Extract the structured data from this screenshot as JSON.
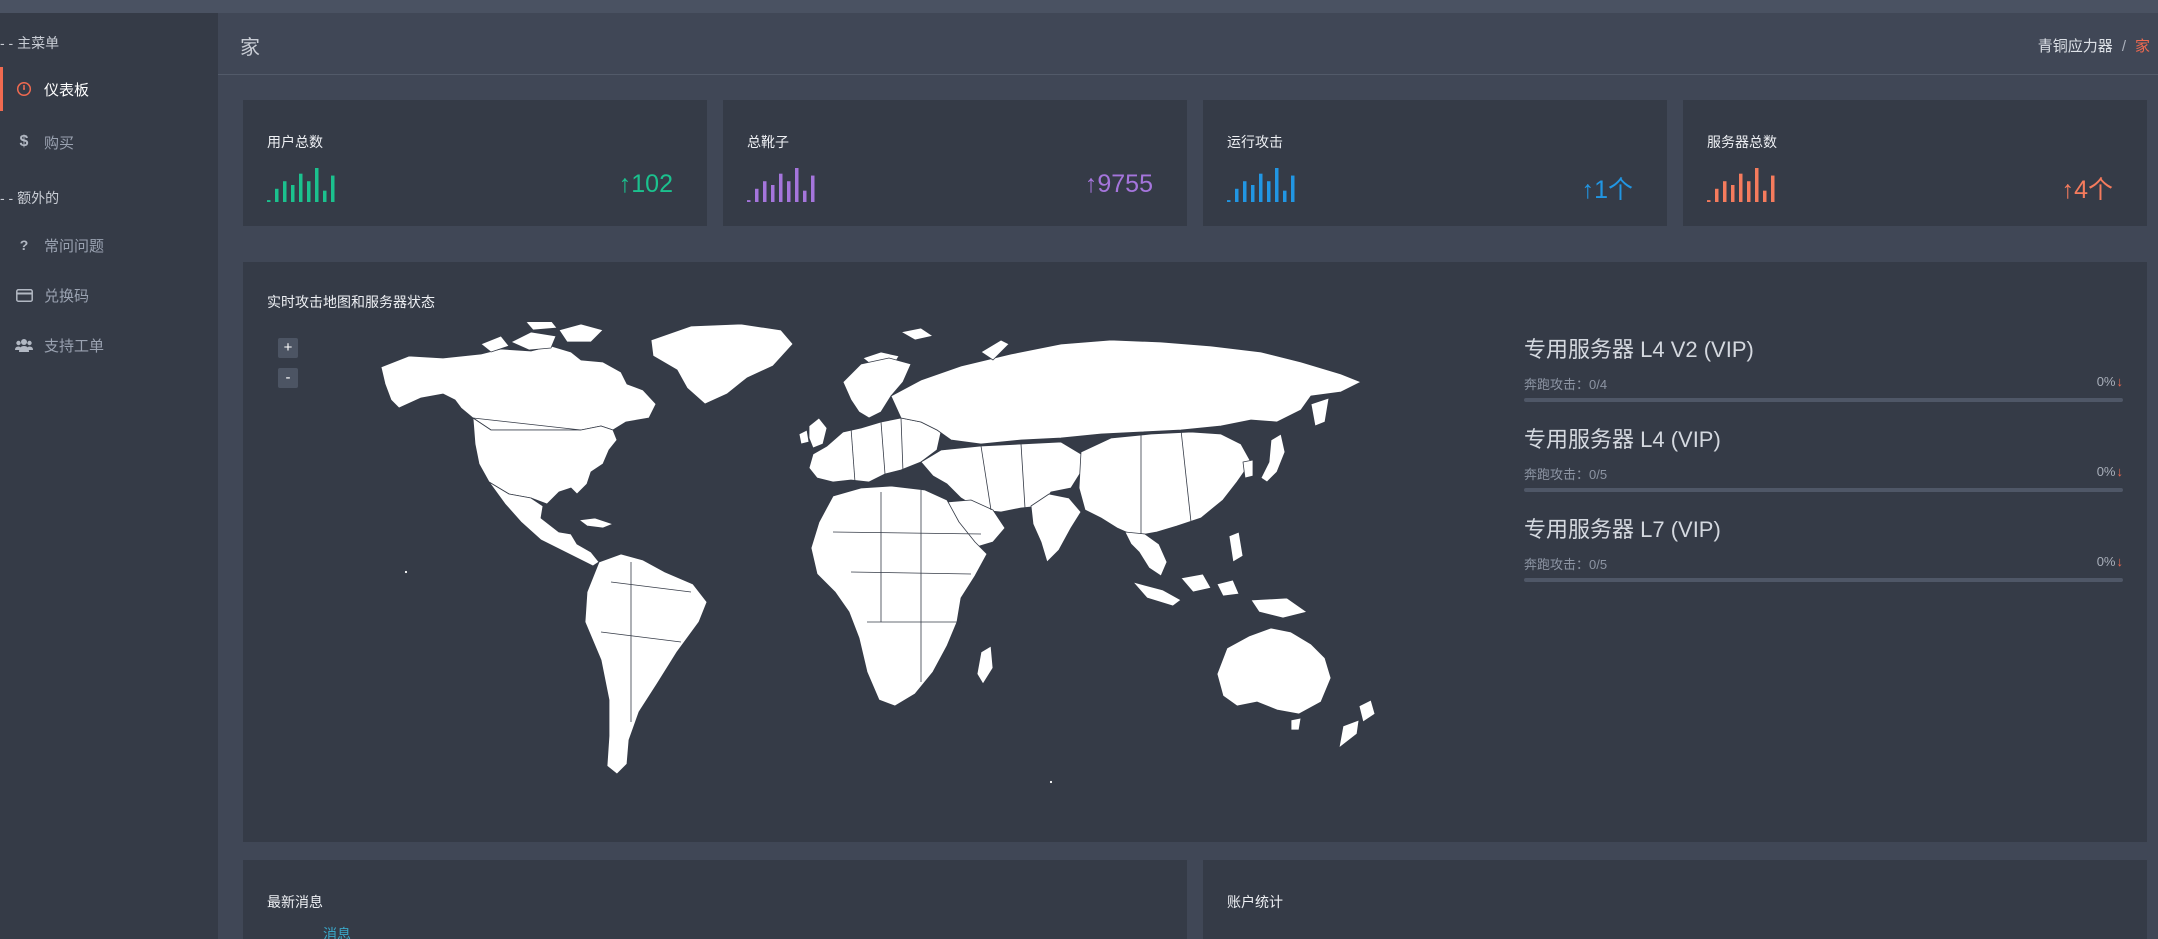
{
  "sidebar": {
    "sections": [
      {
        "label": "- - 主菜单"
      },
      {
        "label": "- - 额外的"
      }
    ],
    "items": [
      {
        "label": "仪表板",
        "icon": "dashboard-icon",
        "active": true
      },
      {
        "label": "购买",
        "icon": "dollar-icon"
      },
      {
        "label": "常问问题",
        "icon": "question-icon"
      },
      {
        "label": "兑换码",
        "icon": "credit-card-icon"
      },
      {
        "label": "支持工单",
        "icon": "users-icon"
      }
    ]
  },
  "header": {
    "title": "家",
    "breadcrumb": {
      "root": "青铜应力器",
      "separator": "/",
      "current": "家"
    }
  },
  "stats": [
    {
      "title": "用户总数",
      "value": "102",
      "trend_icon": "arrow-up-icon",
      "color": "#1bc18e",
      "spark": [
        1,
        7,
        11,
        9,
        15,
        11,
        18,
        6,
        14
      ]
    },
    {
      "title": "总靴子",
      "value": "9755",
      "trend_icon": "arrow-up-icon",
      "color": "#a575dc",
      "spark": [
        1,
        7,
        11,
        9,
        15,
        11,
        18,
        6,
        14
      ]
    },
    {
      "title": "运行攻击",
      "value": "1个",
      "trend_icon": "arrow-up-icon",
      "color": "#2196e3",
      "spark": [
        1,
        7,
        11,
        9,
        15,
        11,
        18,
        6,
        14
      ]
    },
    {
      "title": "服务器总数",
      "value": "4个",
      "trend_icon": "arrow-up-icon",
      "color": "#f57b5d",
      "spark": [
        1,
        7,
        11,
        9,
        15,
        11,
        18,
        6,
        14
      ]
    }
  ],
  "map_panel": {
    "title": "实时攻击地图和服务器状态",
    "zoom_in": "+",
    "zoom_out": "-"
  },
  "servers": [
    {
      "name": "专用服务器 L4 V2 (VIP)",
      "sub": "奔跑攻击：0/4",
      "percent": "0%",
      "fill": 0
    },
    {
      "name": "专用服务器 L4 (VIP)",
      "sub": "奔跑攻击：0/5",
      "percent": "0%",
      "fill": 0
    },
    {
      "name": "专用服务器 L7 (VIP)",
      "sub": "奔跑攻击：0/5",
      "percent": "0%",
      "fill": 0
    }
  ],
  "bottom": {
    "news_title": "最新消息",
    "news_item": "消息",
    "account_title": "账户统计"
  }
}
